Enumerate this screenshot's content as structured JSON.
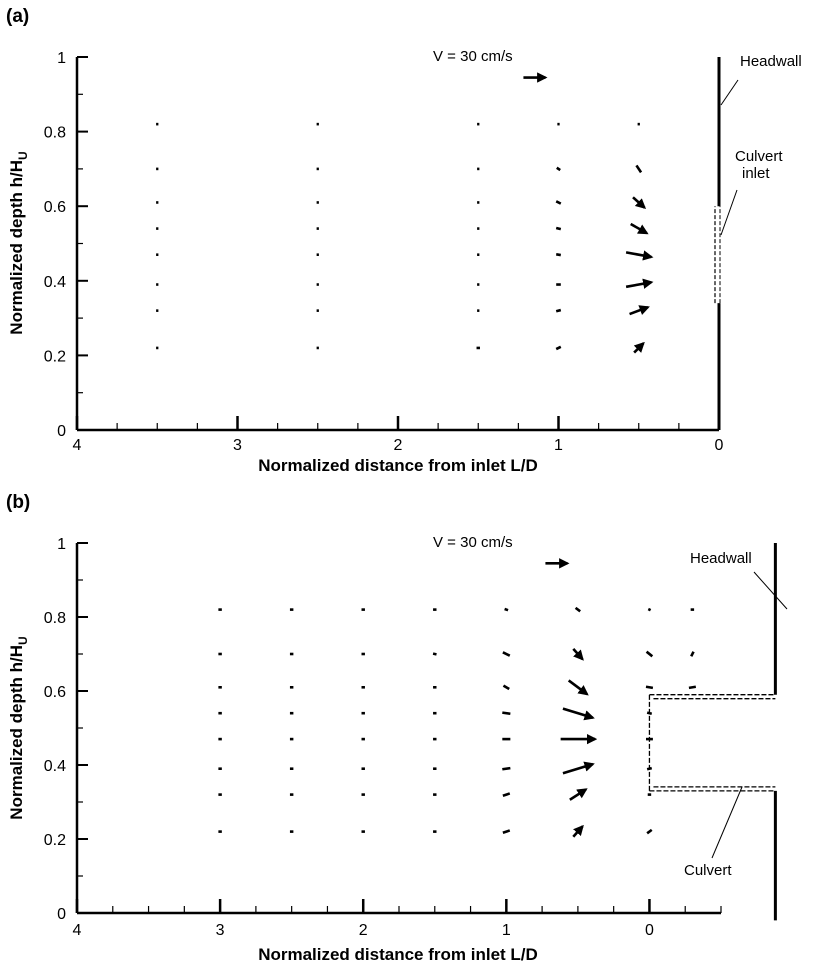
{
  "chart_data": [
    {
      "type": "quiver",
      "panel_label": "(a)",
      "xlabel": "Normalized distance from inlet L/D",
      "ylabel_main": "Normalized depth h/H",
      "ylabel_sub": "U",
      "xlim": [
        4,
        0
      ],
      "ylim": [
        0,
        1
      ],
      "x_reversed": true,
      "x_ticks": [
        4,
        3,
        2,
        1,
        0
      ],
      "x_tick_labels": [
        "4",
        "3",
        "2",
        "1",
        "0"
      ],
      "y_ticks": [
        0,
        0.2,
        0.4,
        0.6,
        0.8,
        1
      ],
      "y_tick_labels": [
        "0",
        "0.2",
        "0.4",
        "0.6",
        "0.8",
        "1"
      ],
      "reference_vector": {
        "label": "V = 30 cm/s",
        "speed_cm_s": 30,
        "x": 1.15,
        "y": 0.945
      },
      "annotations": [
        {
          "text": "Headwall",
          "target": "headwall"
        },
        {
          "text": "Culvert\ninlet",
          "target": "culvert-inlet"
        }
      ],
      "headwall": {
        "x": 0,
        "y_ranges": [
          [
            0,
            0.34
          ],
          [
            0.6,
            1
          ]
        ]
      },
      "culvert_inlet": {
        "x": 0,
        "y_range": [
          0.34,
          0.6
        ]
      },
      "vectors": [
        {
          "x": 3.5,
          "y": 0.82,
          "u": 1,
          "v": 0
        },
        {
          "x": 3.5,
          "y": 0.7,
          "u": 1,
          "v": 0
        },
        {
          "x": 3.5,
          "y": 0.61,
          "u": 1,
          "v": 0
        },
        {
          "x": 3.5,
          "y": 0.54,
          "u": 1,
          "v": 0
        },
        {
          "x": 3.5,
          "y": 0.47,
          "u": 1,
          "v": 0
        },
        {
          "x": 3.5,
          "y": 0.39,
          "u": 1,
          "v": 0
        },
        {
          "x": 3.5,
          "y": 0.32,
          "u": 1,
          "v": 0
        },
        {
          "x": 3.5,
          "y": 0.22,
          "u": 1,
          "v": 0
        },
        {
          "x": 2.5,
          "y": 0.82,
          "u": 1,
          "v": 0
        },
        {
          "x": 2.5,
          "y": 0.7,
          "u": 1,
          "v": 0
        },
        {
          "x": 2.5,
          "y": 0.61,
          "u": 1,
          "v": 0
        },
        {
          "x": 2.5,
          "y": 0.54,
          "u": 1,
          "v": 0
        },
        {
          "x": 2.5,
          "y": 0.47,
          "u": 1,
          "v": 0
        },
        {
          "x": 2.5,
          "y": 0.39,
          "u": 1,
          "v": 0
        },
        {
          "x": 2.5,
          "y": 0.32,
          "u": 1,
          "v": 0
        },
        {
          "x": 2.5,
          "y": 0.22,
          "u": 1,
          "v": 0
        },
        {
          "x": 1.5,
          "y": 0.82,
          "u": 1,
          "v": 0
        },
        {
          "x": 1.5,
          "y": 0.7,
          "u": 1,
          "v": 0
        },
        {
          "x": 1.5,
          "y": 0.61,
          "u": 1,
          "v": 0
        },
        {
          "x": 1.5,
          "y": 0.54,
          "u": 1,
          "v": 0
        },
        {
          "x": 1.5,
          "y": 0.47,
          "u": 1,
          "v": 0
        },
        {
          "x": 1.5,
          "y": 0.39,
          "u": 1,
          "v": 0
        },
        {
          "x": 1.5,
          "y": 0.32,
          "u": 1,
          "v": 0
        },
        {
          "x": 1.5,
          "y": 0.22,
          "u": 1.5,
          "v": 0
        },
        {
          "x": 1.0,
          "y": 0.82,
          "u": 1,
          "v": 0
        },
        {
          "x": 1.0,
          "y": 0.7,
          "u": 1.5,
          "v": -1
        },
        {
          "x": 1.0,
          "y": 0.61,
          "u": 2,
          "v": -1
        },
        {
          "x": 1.0,
          "y": 0.54,
          "u": 2,
          "v": -0.5
        },
        {
          "x": 1.0,
          "y": 0.47,
          "u": 2,
          "v": -0.3
        },
        {
          "x": 1.0,
          "y": 0.39,
          "u": 2,
          "v": 0
        },
        {
          "x": 1.0,
          "y": 0.32,
          "u": 2,
          "v": 0.5
        },
        {
          "x": 1.0,
          "y": 0.22,
          "u": 2,
          "v": 1
        },
        {
          "x": 0.5,
          "y": 0.82,
          "u": 1,
          "v": 0
        },
        {
          "x": 0.5,
          "y": 0.7,
          "u": 2,
          "v": -3
        },
        {
          "x": 0.5,
          "y": 0.61,
          "u": 5,
          "v": -4.5
        },
        {
          "x": 0.5,
          "y": 0.54,
          "u": 7,
          "v": -4
        },
        {
          "x": 0.5,
          "y": 0.47,
          "u": 11,
          "v": -2
        },
        {
          "x": 0.5,
          "y": 0.39,
          "u": 11,
          "v": 2
        },
        {
          "x": 0.5,
          "y": 0.32,
          "u": 8,
          "v": 3
        },
        {
          "x": 0.5,
          "y": 0.22,
          "u": 4,
          "v": 4
        }
      ]
    },
    {
      "type": "quiver",
      "panel_label": "(b)",
      "xlabel": "Normalized distance from inlet L/D",
      "ylabel_main": "Normalized depth h/H",
      "ylabel_sub": "U",
      "xlim": [
        4,
        -0.5
      ],
      "ylim": [
        0,
        1
      ],
      "x_reversed": true,
      "x_ticks": [
        4,
        3,
        2,
        1,
        0
      ],
      "x_tick_labels": [
        "4",
        "3",
        "2",
        "1",
        "0"
      ],
      "y_ticks": [
        0,
        0.2,
        0.4,
        0.6,
        0.8,
        1
      ],
      "y_tick_labels": [
        "0",
        "0.2",
        "0.4",
        "0.6",
        "0.8",
        "1"
      ],
      "reference_vector": {
        "label": "V = 30 cm/s",
        "speed_cm_s": 30,
        "x": 0.65,
        "y": 0.945
      },
      "annotations": [
        {
          "text": "Headwall",
          "target": "headwall"
        },
        {
          "text": "Culvert",
          "target": "culvert"
        }
      ],
      "headwall": {
        "x": -0.88,
        "y_ranges": [
          [
            -0.02,
            0.33
          ],
          [
            0.59,
            1.0
          ]
        ]
      },
      "culvert": {
        "x_range": [
          0,
          -0.88
        ],
        "y_range": [
          0.33,
          0.59
        ]
      },
      "vectors": [
        {
          "x": 3.0,
          "y": 0.82,
          "u": 1.5,
          "v": 0
        },
        {
          "x": 3.0,
          "y": 0.7,
          "u": 1.5,
          "v": 0
        },
        {
          "x": 3.0,
          "y": 0.61,
          "u": 1.5,
          "v": 0
        },
        {
          "x": 3.0,
          "y": 0.54,
          "u": 1.5,
          "v": 0
        },
        {
          "x": 3.0,
          "y": 0.47,
          "u": 1.5,
          "v": 0
        },
        {
          "x": 3.0,
          "y": 0.39,
          "u": 1.5,
          "v": 0
        },
        {
          "x": 3.0,
          "y": 0.32,
          "u": 1.5,
          "v": 0
        },
        {
          "x": 3.0,
          "y": 0.22,
          "u": 1.5,
          "v": 0
        },
        {
          "x": 2.5,
          "y": 0.82,
          "u": 1.5,
          "v": 0
        },
        {
          "x": 2.5,
          "y": 0.7,
          "u": 1.5,
          "v": 0
        },
        {
          "x": 2.5,
          "y": 0.61,
          "u": 1.5,
          "v": 0
        },
        {
          "x": 2.5,
          "y": 0.54,
          "u": 1.5,
          "v": 0
        },
        {
          "x": 2.5,
          "y": 0.47,
          "u": 1.5,
          "v": 0
        },
        {
          "x": 2.5,
          "y": 0.39,
          "u": 1.5,
          "v": 0
        },
        {
          "x": 2.5,
          "y": 0.32,
          "u": 1.5,
          "v": 0
        },
        {
          "x": 2.5,
          "y": 0.22,
          "u": 1.5,
          "v": 0
        },
        {
          "x": 2.0,
          "y": 0.82,
          "u": 1.5,
          "v": 0
        },
        {
          "x": 2.0,
          "y": 0.7,
          "u": 1.5,
          "v": 0
        },
        {
          "x": 2.0,
          "y": 0.61,
          "u": 1.5,
          "v": 0
        },
        {
          "x": 2.0,
          "y": 0.54,
          "u": 1.5,
          "v": 0
        },
        {
          "x": 2.0,
          "y": 0.47,
          "u": 1.5,
          "v": 0
        },
        {
          "x": 2.0,
          "y": 0.39,
          "u": 1.5,
          "v": 0
        },
        {
          "x": 2.0,
          "y": 0.32,
          "u": 1.5,
          "v": 0
        },
        {
          "x": 2.0,
          "y": 0.22,
          "u": 1.5,
          "v": 0
        },
        {
          "x": 1.5,
          "y": 0.82,
          "u": 1.5,
          "v": 0
        },
        {
          "x": 1.5,
          "y": 0.7,
          "u": 1.5,
          "v": -0.3
        },
        {
          "x": 1.5,
          "y": 0.61,
          "u": 1.5,
          "v": 0
        },
        {
          "x": 1.5,
          "y": 0.54,
          "u": 1.5,
          "v": 0
        },
        {
          "x": 1.5,
          "y": 0.47,
          "u": 1.5,
          "v": 0
        },
        {
          "x": 1.5,
          "y": 0.39,
          "u": 1.5,
          "v": 0
        },
        {
          "x": 1.5,
          "y": 0.32,
          "u": 1.5,
          "v": 0
        },
        {
          "x": 1.5,
          "y": 0.22,
          "u": 1.5,
          "v": 0
        },
        {
          "x": 1.0,
          "y": 0.82,
          "u": 1.5,
          "v": -0.5
        },
        {
          "x": 1.0,
          "y": 0.7,
          "u": 3,
          "v": -1.5
        },
        {
          "x": 1.0,
          "y": 0.61,
          "u": 2.5,
          "v": -1.5
        },
        {
          "x": 1.0,
          "y": 0.54,
          "u": 3.5,
          "v": -0.5
        },
        {
          "x": 1.0,
          "y": 0.47,
          "u": 3.5,
          "v": 0
        },
        {
          "x": 1.0,
          "y": 0.39,
          "u": 3.5,
          "v": 0.5
        },
        {
          "x": 1.0,
          "y": 0.32,
          "u": 3,
          "v": 1
        },
        {
          "x": 1.0,
          "y": 0.22,
          "u": 3,
          "v": 1
        },
        {
          "x": 0.5,
          "y": 0.82,
          "u": 2,
          "v": -1.5
        },
        {
          "x": 0.5,
          "y": 0.7,
          "u": 4,
          "v": -4.5
        },
        {
          "x": 0.5,
          "y": 0.61,
          "u": 8,
          "v": -6
        },
        {
          "x": 0.5,
          "y": 0.54,
          "u": 13,
          "v": -4
        },
        {
          "x": 0.5,
          "y": 0.47,
          "u": 15,
          "v": 0
        },
        {
          "x": 0.5,
          "y": 0.39,
          "u": 13,
          "v": 4
        },
        {
          "x": 0.5,
          "y": 0.32,
          "u": 7,
          "v": 4.5
        },
        {
          "x": 0.5,
          "y": 0.22,
          "u": 4,
          "v": 4.5
        },
        {
          "x": 0.0,
          "y": 0.82,
          "u": 1,
          "v": -0.5
        },
        {
          "x": 0.0,
          "y": 0.7,
          "u": 2.5,
          "v": -2
        },
        {
          "x": 0.0,
          "y": 0.61,
          "u": 3,
          "v": -0.5
        },
        {
          "x": 0.0,
          "y": 0.54,
          "u": 2,
          "v": -0.5
        },
        {
          "x": 0.0,
          "y": 0.47,
          "u": 3,
          "v": 0
        },
        {
          "x": 0.0,
          "y": 0.39,
          "u": 2,
          "v": 0.5
        },
        {
          "x": 0.0,
          "y": 0.32,
          "u": 1.5,
          "v": 0
        },
        {
          "x": 0.0,
          "y": 0.22,
          "u": 2,
          "v": 1.5
        },
        {
          "x": -0.3,
          "y": 0.82,
          "u": 1.5,
          "v": 0
        },
        {
          "x": -0.3,
          "y": 0.7,
          "u": 1,
          "v": 2
        },
        {
          "x": -0.3,
          "y": 0.61,
          "u": 3,
          "v": 0.5
        }
      ]
    }
  ]
}
